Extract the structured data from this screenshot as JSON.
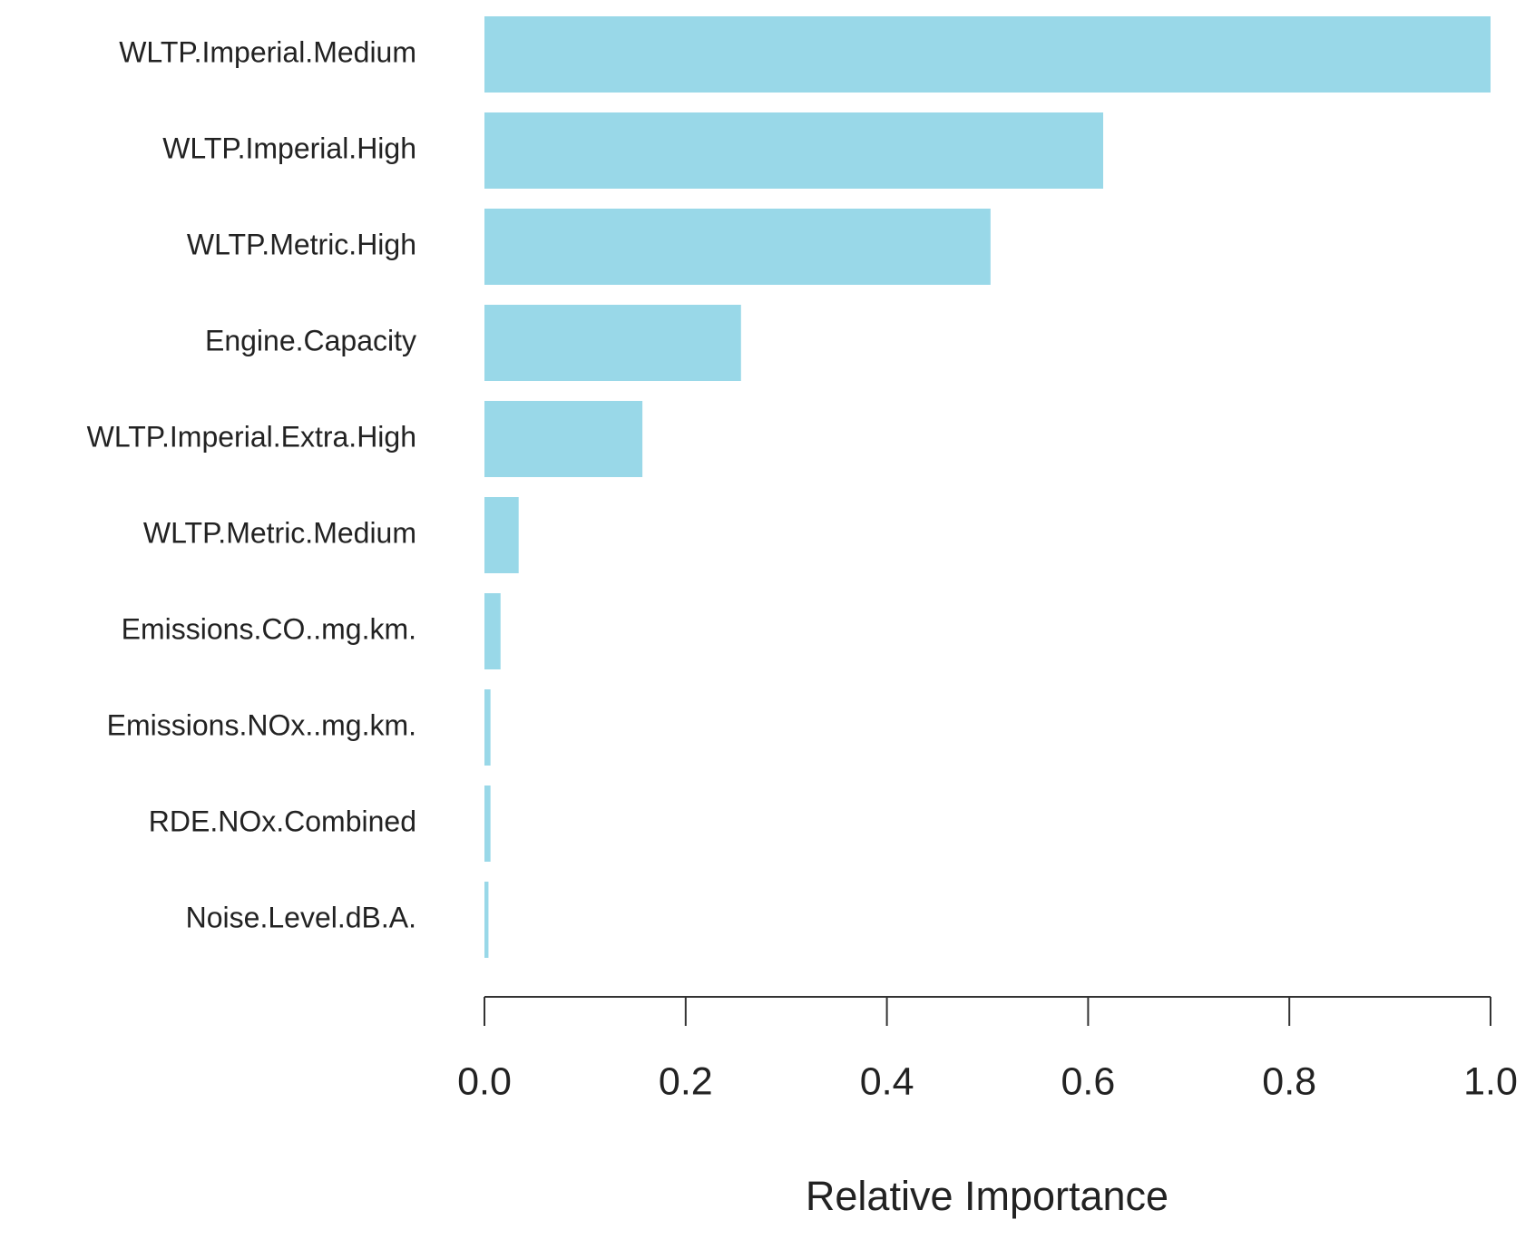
{
  "chart_data": {
    "type": "bar",
    "orientation": "horizontal",
    "categories": [
      "WLTP.Imperial.Medium",
      "WLTP.Imperial.High",
      "WLTP.Metric.High",
      "Engine.Capacity",
      "WLTP.Imperial.Extra.High",
      "WLTP.Metric.Medium",
      "Emissions.CO..mg.km.",
      "Emissions.NOx..mg.km.",
      "RDE.NOx.Combined",
      "Noise.Level.dB.A."
    ],
    "values": [
      1.0,
      0.615,
      0.503,
      0.255,
      0.157,
      0.034,
      0.016,
      0.006,
      0.006,
      0.004
    ],
    "color": "#99d8e8",
    "xlim": [
      0,
      1
    ],
    "xticks": [
      {
        "value": 0,
        "label": "0.0"
      },
      0.2,
      0.4,
      0.6,
      0.8,
      {
        "value": 1,
        "label": "1.0"
      }
    ],
    "x_label": "Relative Importance",
    "grid": false
  }
}
